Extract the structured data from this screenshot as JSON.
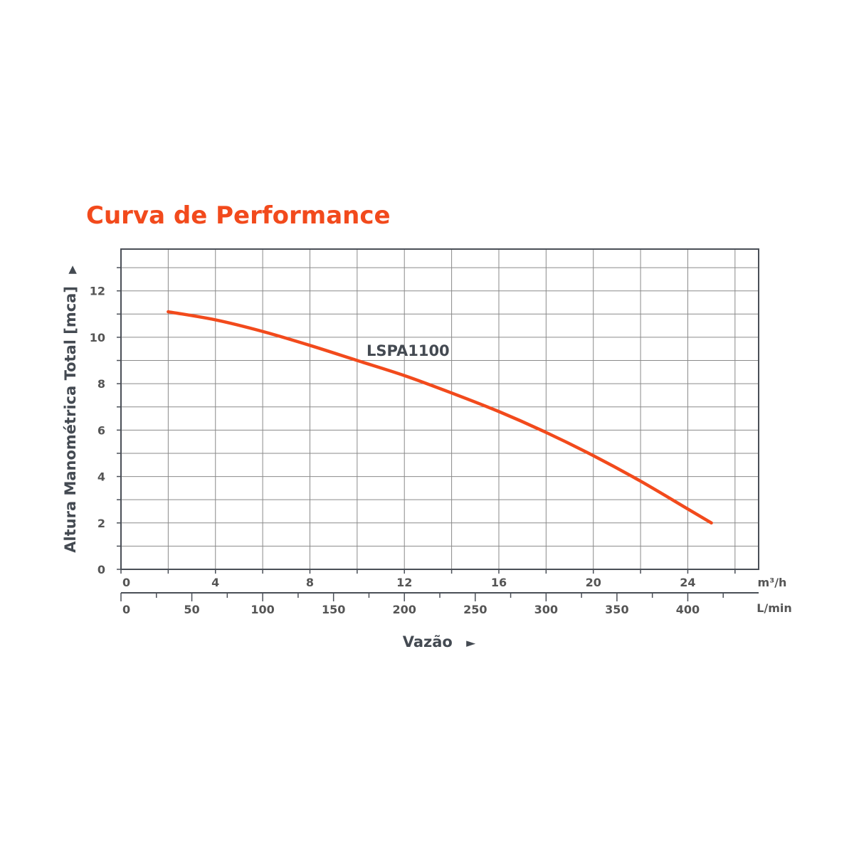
{
  "colors": {
    "accent": "#f24a1c",
    "text": "#4a4f57",
    "grid": "#8a8a8a",
    "frame": "#4a4f57"
  },
  "chart_data": {
    "type": "line",
    "title": "Curva de Performance",
    "ylabel": "Altura Manométrica Total [mca]",
    "ylabel_arrow": "▶",
    "xlabel": "Vazão",
    "xlabel_arrow": "►",
    "ylim": [
      0,
      13.8
    ],
    "y_ticks": [
      0,
      2,
      4,
      6,
      8,
      10,
      12
    ],
    "x_primary": {
      "unit": "m³/h",
      "range": [
        0,
        27
      ],
      "ticks": [
        0,
        4,
        8,
        12,
        16,
        20,
        24
      ]
    },
    "x_secondary": {
      "unit": "L/min",
      "ticks": [
        "0",
        "50",
        "100",
        "150",
        "200",
        "250",
        "300",
        "350",
        "400"
      ]
    },
    "grid": true,
    "series": [
      {
        "name": "LSPA1100",
        "x": [
          2,
          4,
          6,
          8,
          10,
          12,
          14,
          16,
          18,
          20,
          22,
          24,
          25
        ],
        "y": [
          11.1,
          10.75,
          10.25,
          9.65,
          9.0,
          8.35,
          7.6,
          6.8,
          5.9,
          4.9,
          3.8,
          2.6,
          2.0
        ]
      }
    ]
  }
}
